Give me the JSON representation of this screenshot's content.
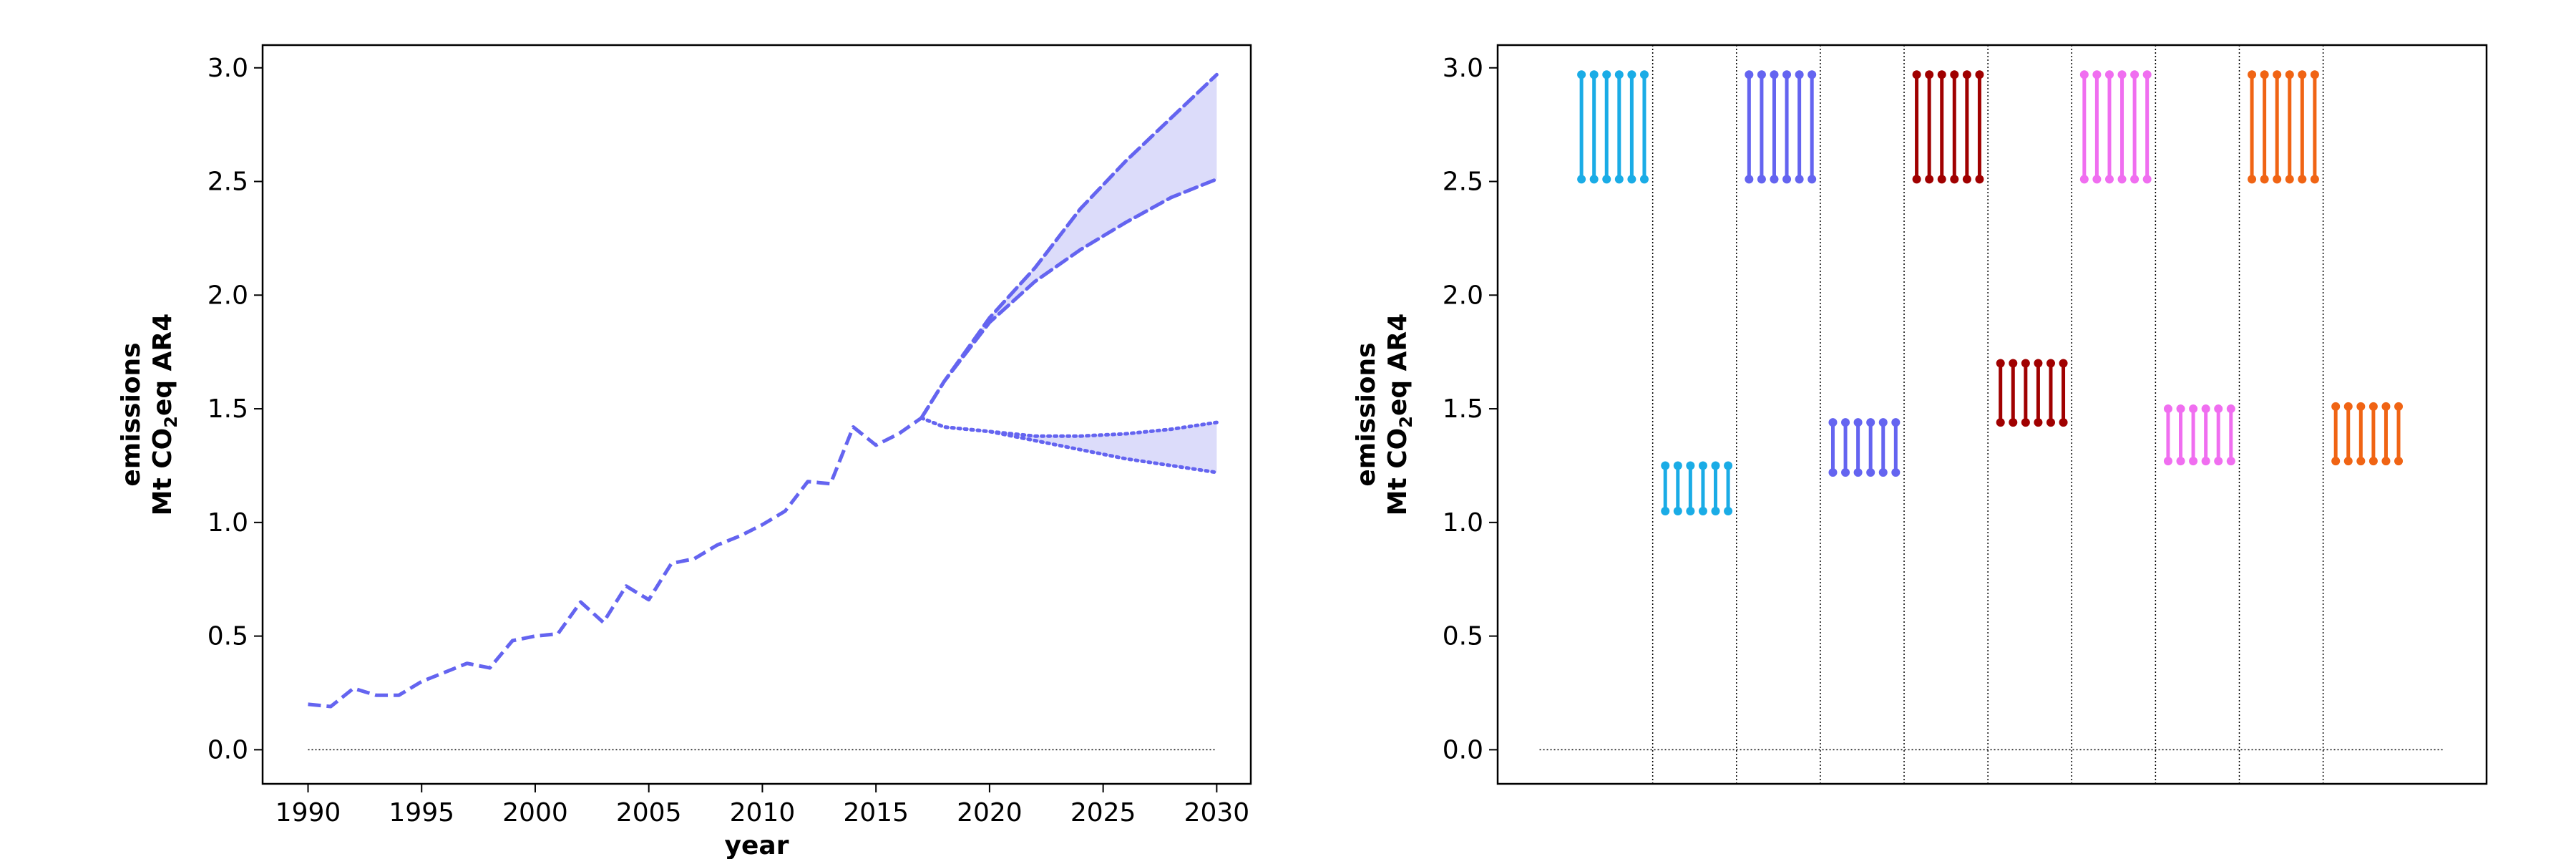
{
  "chart_data": [
    {
      "type": "line",
      "xlabel": "year",
      "ylabel_line1": "emissions",
      "ylabel_line2_prefix": "Mt CO",
      "ylabel_line2_sub": "2",
      "ylabel_line2_suffix": "eq AR4",
      "xlim": [
        1988,
        2031.5
      ],
      "ylim": [
        -0.15,
        3.1
      ],
      "xticks": [
        1990,
        1995,
        2000,
        2005,
        2010,
        2015,
        2020,
        2025,
        2030
      ],
      "yticks": [
        0.0,
        0.5,
        1.0,
        1.5,
        2.0,
        2.5,
        3.0
      ],
      "ytick_labels": [
        "0.0",
        "0.5",
        "1.0",
        "1.5",
        "2.0",
        "2.5",
        "3.0"
      ],
      "color": "#6464f0",
      "fill_color": "#dcdcfa",
      "zero_line": {
        "x": [
          1990,
          2030
        ],
        "y": 0
      },
      "historical": {
        "x": [
          1990,
          1991,
          1992,
          1993,
          1994,
          1995,
          1996,
          1997,
          1998,
          1999,
          2000,
          2001,
          2002,
          2003,
          2004,
          2005,
          2006,
          2007,
          2008,
          2009,
          2010,
          2011,
          2012,
          2013,
          2014,
          2015,
          2016,
          2017
        ],
        "y": [
          0.2,
          0.19,
          0.27,
          0.24,
          0.24,
          0.3,
          0.34,
          0.38,
          0.36,
          0.48,
          0.5,
          0.51,
          0.65,
          0.56,
          0.72,
          0.66,
          0.82,
          0.84,
          0.9,
          0.94,
          0.99,
          1.05,
          1.18,
          1.17,
          1.42,
          1.34,
          1.39,
          1.46
        ]
      },
      "projections": [
        {
          "style": "dashed",
          "x": [
            2017,
            2018,
            2020,
            2022,
            2024,
            2026,
            2028,
            2030
          ],
          "y": [
            1.46,
            1.62,
            1.9,
            2.12,
            2.38,
            2.59,
            2.78,
            2.97
          ]
        },
        {
          "style": "dashed",
          "x": [
            2017,
            2018,
            2020,
            2022,
            2024,
            2026,
            2028,
            2030
          ],
          "y": [
            1.46,
            1.62,
            1.88,
            2.06,
            2.2,
            2.32,
            2.43,
            2.51
          ]
        },
        {
          "style": "dotted",
          "x": [
            2017,
            2018,
            2020,
            2022,
            2024,
            2026,
            2028,
            2030
          ],
          "y": [
            1.46,
            1.42,
            1.4,
            1.38,
            1.38,
            1.39,
            1.41,
            1.44
          ]
        },
        {
          "style": "dotted",
          "x": [
            2017,
            2018,
            2020,
            2022,
            2024,
            2026,
            2028,
            2030
          ],
          "y": [
            1.46,
            1.42,
            1.4,
            1.36,
            1.32,
            1.28,
            1.25,
            1.22
          ]
        }
      ],
      "bands": [
        {
          "x": [
            2017,
            2018,
            2020,
            2022,
            2024,
            2026,
            2028,
            2030
          ],
          "upper": [
            1.46,
            1.62,
            1.9,
            2.12,
            2.38,
            2.59,
            2.78,
            2.97
          ],
          "lower": [
            1.46,
            1.62,
            1.88,
            2.06,
            2.2,
            2.32,
            2.43,
            2.51
          ]
        },
        {
          "x": [
            2017,
            2018,
            2020,
            2022,
            2024,
            2026,
            2028,
            2030
          ],
          "upper": [
            1.46,
            1.42,
            1.4,
            1.38,
            1.38,
            1.39,
            1.41,
            1.44
          ],
          "lower": [
            1.46,
            1.42,
            1.4,
            1.36,
            1.32,
            1.28,
            1.25,
            1.22
          ]
        }
      ]
    },
    {
      "type": "scatter",
      "ylabel_line1": "emissions",
      "ylabel_line2_prefix": "Mt CO",
      "ylabel_line2_sub": "2",
      "ylabel_line2_suffix": "eq AR4",
      "xlim": [
        0,
        11.8
      ],
      "ylim": [
        -0.15,
        3.1
      ],
      "yticks": [
        0.0,
        0.5,
        1.0,
        1.5,
        2.0,
        2.5,
        3.0
      ],
      "ytick_labels": [
        "0.0",
        "0.5",
        "1.0",
        "1.5",
        "2.0",
        "2.5",
        "3.0"
      ],
      "zero_line": {
        "x": [
          0.5,
          11.3
        ],
        "y": 0
      },
      "separators_x": [
        1.85,
        2.85,
        3.85,
        4.85,
        5.85,
        6.85,
        7.85,
        8.85,
        9.85
      ],
      "groups": [
        {
          "color": "#1aace6",
          "x": [
            1.0,
            1.15,
            1.3,
            1.45,
            1.6,
            1.75
          ],
          "low": 2.51,
          "high": 2.97
        },
        {
          "color": "#1aace6",
          "x": [
            2.0,
            2.15,
            2.3,
            2.45,
            2.6,
            2.75
          ],
          "low": 1.05,
          "high": 1.25
        },
        {
          "color": "#6464f0",
          "x": [
            3.0,
            3.15,
            3.3,
            3.45,
            3.6,
            3.75
          ],
          "low": 2.51,
          "high": 2.97
        },
        {
          "color": "#6464f0",
          "x": [
            4.0,
            4.15,
            4.3,
            4.45,
            4.6,
            4.75
          ],
          "low": 1.22,
          "high": 1.44
        },
        {
          "color": "#a00000",
          "x": [
            5.0,
            5.15,
            5.3,
            5.45,
            5.6,
            5.75
          ],
          "low": 2.51,
          "high": 2.97
        },
        {
          "color": "#a00000",
          "x": [
            6.0,
            6.15,
            6.3,
            6.45,
            6.6,
            6.75
          ],
          "low": 1.44,
          "high": 1.7
        },
        {
          "color": "#f06ef0",
          "x": [
            7.0,
            7.15,
            7.3,
            7.45,
            7.6,
            7.75
          ],
          "low": 2.51,
          "high": 2.97
        },
        {
          "color": "#f06ef0",
          "x": [
            8.0,
            8.15,
            8.3,
            8.45,
            8.6,
            8.75
          ],
          "low": 1.27,
          "high": 1.5
        },
        {
          "color": "#f06414",
          "x": [
            9.0,
            9.15,
            9.3,
            9.45,
            9.6,
            9.75
          ],
          "low": 2.51,
          "high": 2.97
        },
        {
          "color": "#f06414",
          "x": [
            10.0,
            10.15,
            10.3,
            10.45,
            10.6,
            10.75
          ],
          "low": 1.27,
          "high": 1.51
        }
      ]
    }
  ]
}
